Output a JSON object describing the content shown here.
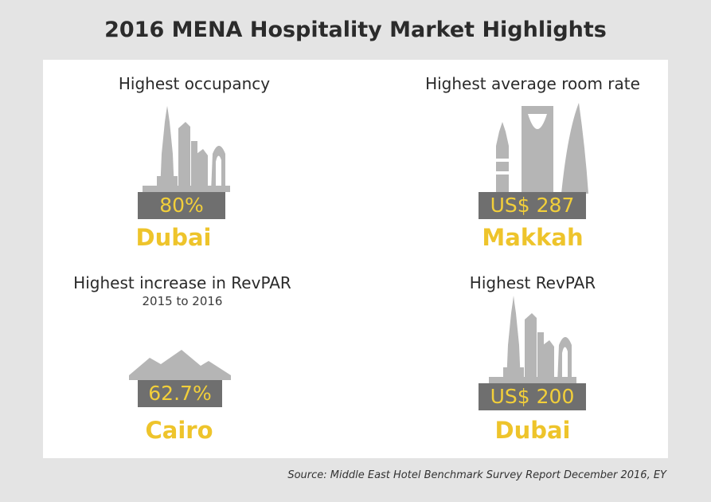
{
  "title": "2016 MENA Hospitality Market Highlights",
  "highlights": [
    {
      "heading": "Highest occupancy",
      "subheading": "",
      "value": "80%",
      "city": "Dubai",
      "icon": "dubai-skyline-icon"
    },
    {
      "heading": "Highest average room rate",
      "subheading": "",
      "value": "US$ 287",
      "city": "Makkah",
      "icon": "makkah-skyline-icon"
    },
    {
      "heading": "Highest increase in RevPAR",
      "subheading": "2015 to 2016",
      "value": "62.7%",
      "city": "Cairo",
      "icon": "pyramids-icon"
    },
    {
      "heading": "Highest RevPAR",
      "subheading": "",
      "value": "US$ 200",
      "city": "Dubai",
      "icon": "dubai-skyline-icon"
    }
  ],
  "source": "Source: Middle East Hotel Benchmark Survey Report December 2016, EY",
  "colors": {
    "accent": "#eec42b",
    "box": "#6f6f6f",
    "icon": "#b5b5b5",
    "background": "#e4e4e4",
    "panel": "#ffffff"
  }
}
